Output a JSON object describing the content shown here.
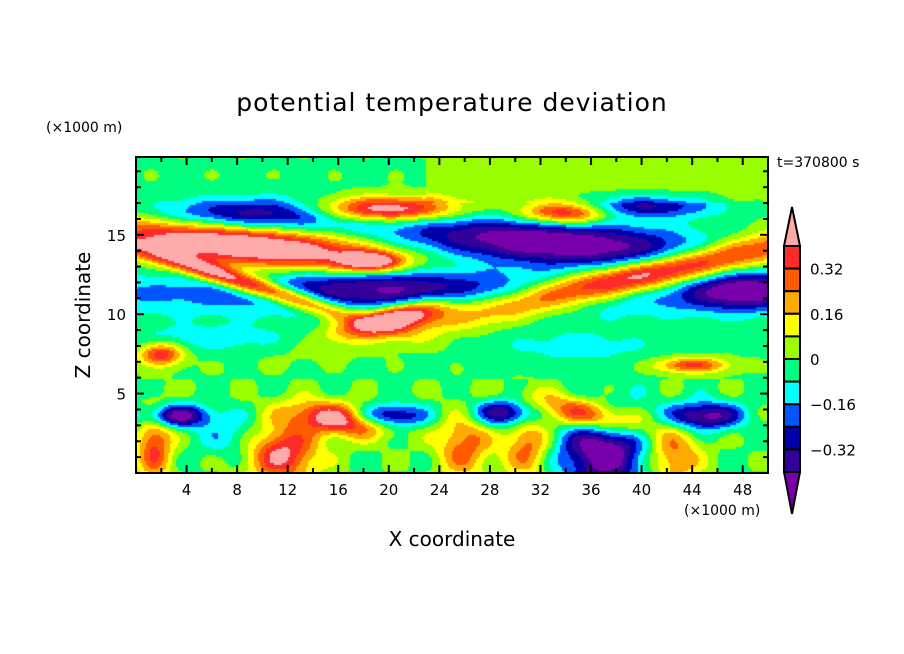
{
  "chart_data": {
    "type": "heatmap",
    "subtype": "filled-contour",
    "title": "potential temperature deviation",
    "xlabel": "X coordinate",
    "ylabel": "Z coordinate",
    "x_unit_label": "(×1000 m)",
    "y_unit_label": "(×1000 m)",
    "time_label": "t=370800 s",
    "xlim": [
      0,
      50
    ],
    "ylim": [
      0,
      19.9
    ],
    "x_ticks": [
      4,
      8,
      12,
      16,
      20,
      24,
      28,
      32,
      36,
      40,
      44,
      48
    ],
    "y_ticks": [
      5,
      10,
      15
    ],
    "contour_levels": [
      -0.4,
      -0.32,
      -0.24,
      -0.16,
      -0.08,
      0,
      0.08,
      0.16,
      0.24,
      0.32,
      0.4
    ],
    "colorbar_labels": [
      "0.32",
      "0.16",
      "0",
      "−0.16",
      "−0.32"
    ],
    "colorbar_label_values": [
      0.32,
      0.16,
      0,
      -0.16,
      -0.32
    ],
    "colors_low_to_high": [
      "#7700aa",
      "#330099",
      "#0000aa",
      "#0055ff",
      "#00ffff",
      "#00ff80",
      "#99ff00",
      "#ffff00",
      "#ffaa00",
      "#ff5a00",
      "#ff2a2a",
      "#ffaaaa"
    ],
    "approx_field_features": [
      {
        "x": 9,
        "z": 14.3,
        "sx": 9,
        "sz": 0.9,
        "slope": -0.08,
        "amp": 0.6
      },
      {
        "x": 9,
        "z": 11.9,
        "sx": 6,
        "sz": 0.45,
        "slope": -0.25,
        "amp": 0.55
      },
      {
        "x": 19.5,
        "z": 16.6,
        "sx": 4,
        "sz": 0.55,
        "slope": 0,
        "amp": 0.6
      },
      {
        "x": 20.5,
        "z": 9.8,
        "sx": 2.8,
        "sz": 0.55,
        "slope": 0.18,
        "amp": 0.6
      },
      {
        "x": 18.5,
        "z": 13.3,
        "sx": 1.6,
        "sz": 0.4,
        "slope": 0,
        "amp": 0.5
      },
      {
        "x": 40,
        "z": 12.4,
        "sx": 11,
        "sz": 0.75,
        "slope": 0.17,
        "amp": 0.6
      },
      {
        "x": 34,
        "z": 16.4,
        "sx": 2.5,
        "sz": 0.5,
        "slope": 0,
        "amp": 0.5
      },
      {
        "x": 16,
        "z": 3.4,
        "sx": 2.6,
        "sz": 0.7,
        "slope": -0.1,
        "amp": 0.5
      },
      {
        "x": 36,
        "z": 3.6,
        "sx": 3.2,
        "sz": 0.7,
        "slope": -0.15,
        "amp": 0.5
      },
      {
        "x": 11.5,
        "z": 1.3,
        "sx": 2,
        "sz": 1.3,
        "slope": 0,
        "amp": 0.45
      },
      {
        "x": 1.5,
        "z": 1.8,
        "sx": 1,
        "sz": 1.6,
        "slope": 0,
        "amp": 0.35
      },
      {
        "x": 26,
        "z": 1.8,
        "sx": 1.5,
        "sz": 1.5,
        "slope": 0,
        "amp": 0.3
      },
      {
        "x": 31,
        "z": 1.8,
        "sx": 1.3,
        "sz": 1.5,
        "slope": 0,
        "amp": 0.3
      },
      {
        "x": 42.5,
        "z": 1.0,
        "sx": 1.5,
        "sz": 1.2,
        "slope": 0,
        "amp": 0.3
      },
      {
        "x": 2,
        "z": 7.5,
        "sx": 1.2,
        "sz": 0.5,
        "slope": 0,
        "amp": 0.4
      },
      {
        "x": 44,
        "z": 6.8,
        "sx": 2,
        "sz": 0.35,
        "slope": 0,
        "amp": 0.35
      },
      {
        "x": 33,
        "z": 14.5,
        "sx": 9,
        "sz": 1.0,
        "slope": -0.05,
        "amp": -0.5
      },
      {
        "x": 10,
        "z": 16.3,
        "sx": 6,
        "sz": 0.7,
        "slope": 0,
        "amp": -0.38
      },
      {
        "x": 25,
        "z": 11.3,
        "sx": 30,
        "sz": 1.0,
        "slope": 0,
        "amp": -0.22
      },
      {
        "x": 20,
        "z": 12,
        "sx": 6,
        "sz": 0.9,
        "slope": 0,
        "amp": -0.25
      },
      {
        "x": 48,
        "z": 11.5,
        "sx": 3,
        "sz": 0.8,
        "slope": 0,
        "amp": -0.35
      },
      {
        "x": 40,
        "z": 16.8,
        "sx": 4,
        "sz": 0.5,
        "slope": 0,
        "amp": -0.32
      },
      {
        "x": 3,
        "z": 3.6,
        "sx": 2,
        "sz": 0.5,
        "slope": 0,
        "amp": -0.45
      },
      {
        "x": 20,
        "z": 3.6,
        "sx": 2,
        "sz": 0.5,
        "slope": 0,
        "amp": -0.4
      },
      {
        "x": 29.5,
        "z": 3.8,
        "sx": 2,
        "sz": 0.6,
        "slope": 0,
        "amp": -0.45
      },
      {
        "x": 37,
        "z": 1.5,
        "sx": 2.5,
        "sz": 1.8,
        "slope": 0,
        "amp": -0.5
      },
      {
        "x": 45,
        "z": 3.6,
        "sx": 2,
        "sz": 0.6,
        "slope": 0,
        "amp": -0.45
      },
      {
        "x": 6,
        "z": 8.5,
        "sx": 5,
        "sz": 0.6,
        "slope": 0,
        "amp": -0.12
      },
      {
        "x": 8,
        "z": 2.3,
        "sx": 2,
        "sz": 1,
        "slope": 0,
        "amp": -0.15
      },
      {
        "x": 35,
        "z": 8,
        "sx": 5,
        "sz": 0.8,
        "slope": 0,
        "amp": -0.1
      }
    ]
  }
}
